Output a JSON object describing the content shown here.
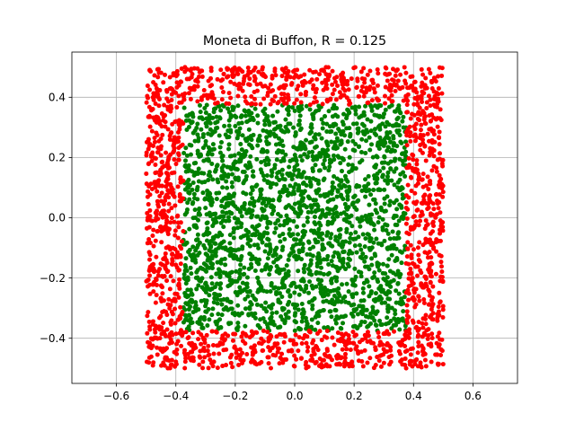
{
  "chart_data": {
    "type": "scatter",
    "title": "Moneta di Buffon, R = 0.125",
    "xlabel": "",
    "ylabel": "",
    "xlim": [
      -0.75,
      0.75
    ],
    "ylim": [
      -0.55,
      0.55
    ],
    "x_ticks": [
      -0.6,
      -0.4,
      -0.2,
      0.0,
      0.2,
      0.4,
      0.6
    ],
    "x_tick_labels": [
      "−0.6",
      "−0.4",
      "−0.2",
      "0.0",
      "0.2",
      "0.4",
      "0.6"
    ],
    "y_ticks": [
      -0.4,
      -0.2,
      0.0,
      0.2,
      0.4
    ],
    "y_tick_labels": [
      "−0.4",
      "−0.2",
      "0.0",
      "0.2",
      "0.4"
    ],
    "grid": true,
    "legend": "none",
    "series": [
      {
        "color": "#008000",
        "region": "|x| < 0.375 and |y| < 0.375",
        "x_range": [
          -0.375,
          0.375
        ],
        "y_range": [
          -0.375,
          0.375
        ],
        "approx_count": 2250
      },
      {
        "color": "#ff0000",
        "region": "0.375 <= max(|x|,|y|) <= 0.5",
        "x_range": [
          -0.5,
          0.5
        ],
        "y_range": [
          -0.5,
          0.5
        ],
        "approx_count": 1750
      }
    ]
  }
}
